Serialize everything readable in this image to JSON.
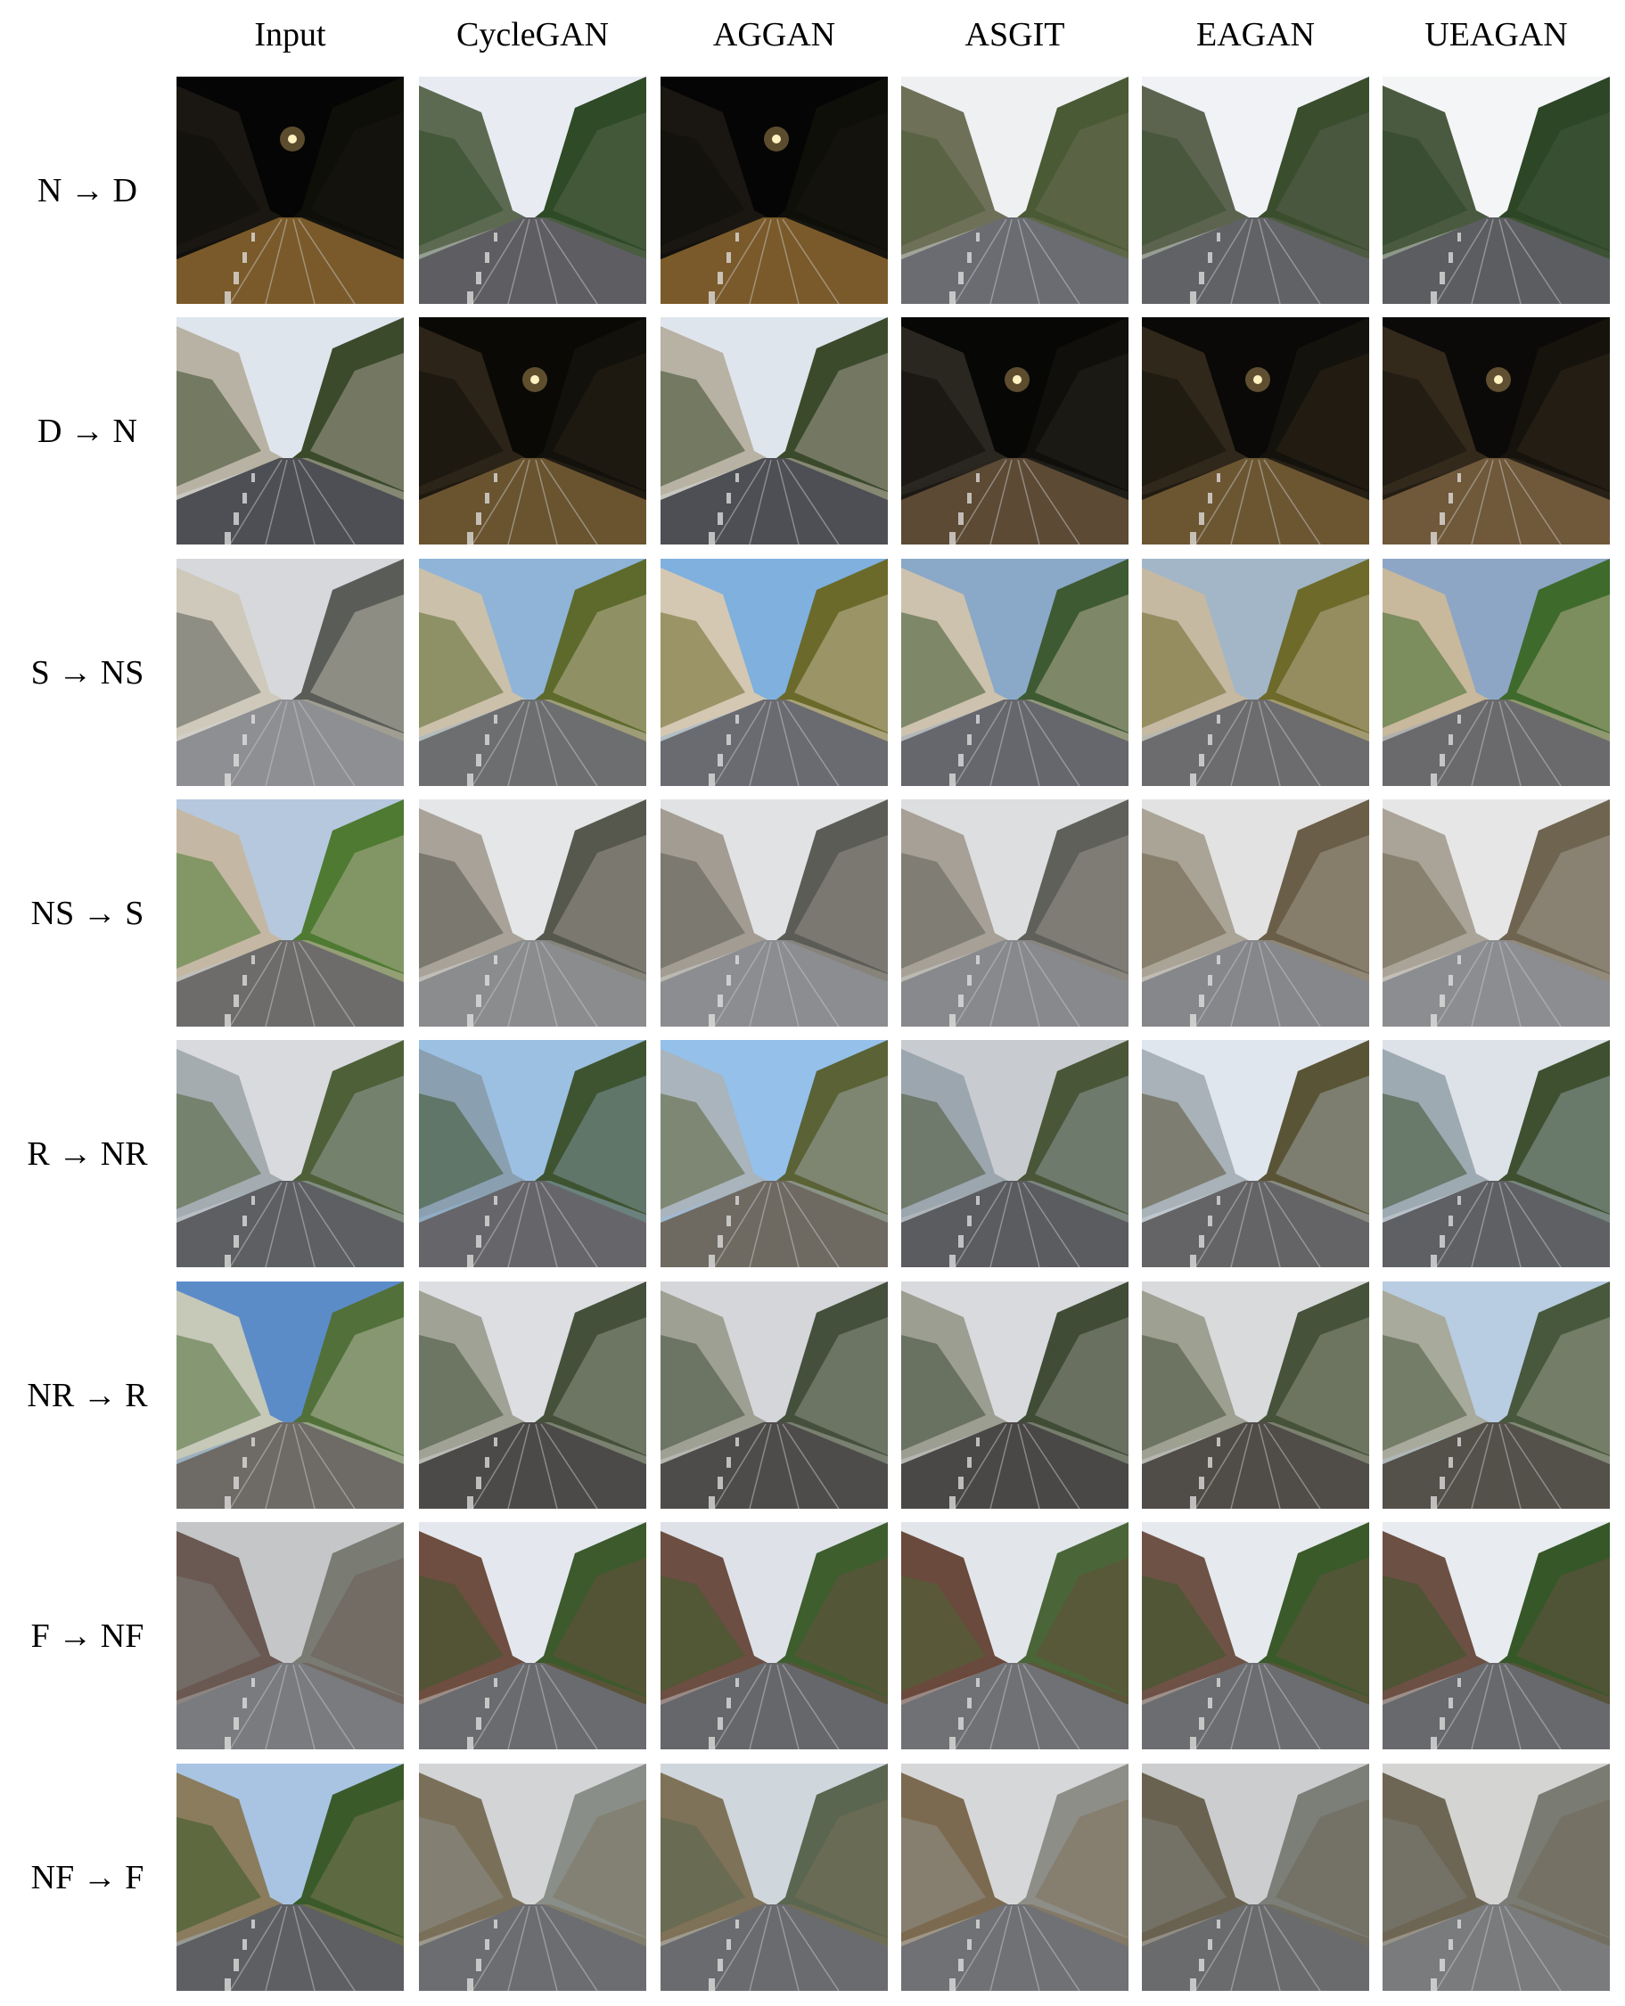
{
  "columns": [
    "Input",
    "CycleGAN",
    "AGGAN",
    "ASGIT",
    "EAGAN",
    "UEAGAN"
  ],
  "rows": [
    {
      "label": "N → D",
      "cells": [
        {
          "scene": "road",
          "sky": "#050505",
          "building": "#1a1712",
          "tree": "#0f0f0a",
          "road": "#7a5a2a",
          "light": true
        },
        {
          "scene": "road",
          "sky": "#e8ecf2",
          "building": "#5d6a52",
          "tree": "#2e4a26",
          "road": "#5e5e62",
          "light": false
        },
        {
          "scene": "road",
          "sky": "#050505",
          "building": "#1a1712",
          "tree": "#0f0f0a",
          "road": "#7a5a2a",
          "light": true
        },
        {
          "scene": "road",
          "sky": "#eef0f2",
          "building": "#6e7058",
          "tree": "#4a5a34",
          "road": "#6a6c72",
          "light": false
        },
        {
          "scene": "road",
          "sky": "#f0f2f5",
          "building": "#5c6450",
          "tree": "#3a4e2e",
          "road": "#616266",
          "light": false
        },
        {
          "scene": "road",
          "sky": "#f4f5f6",
          "building": "#4a5a40",
          "tree": "#2c4626",
          "road": "#5c5d60",
          "light": false
        }
      ]
    },
    {
      "label": "D → N",
      "cells": [
        {
          "scene": "road",
          "sky": "#dfe5ec",
          "building": "#b8b2a4",
          "tree": "#3c4a2c",
          "road": "#4d4f54",
          "light": false
        },
        {
          "scene": "road",
          "sky": "#0a0906",
          "building": "#2c2418",
          "tree": "#12110c",
          "road": "#6a5430",
          "light": true
        },
        {
          "scene": "road",
          "sky": "#dfe5ec",
          "building": "#b8b2a4",
          "tree": "#3c4a2c",
          "road": "#4d4f54",
          "light": false
        },
        {
          "scene": "road",
          "sky": "#070706",
          "building": "#2a2620",
          "tree": "#100f0c",
          "road": "#5c4a34",
          "light": true
        },
        {
          "scene": "road",
          "sky": "#0a0907",
          "building": "#30281a",
          "tree": "#14120c",
          "road": "#6c5632",
          "light": true
        },
        {
          "scene": "road",
          "sky": "#0c0a08",
          "building": "#342a1c",
          "tree": "#16130d",
          "road": "#70583a",
          "light": true
        }
      ]
    },
    {
      "label": "S → NS",
      "cells": [
        {
          "scene": "road",
          "sky": "#d6d8dc",
          "building": "#cfc9bb",
          "tree": "#5a5c58",
          "road": "#8e8f92",
          "light": false
        },
        {
          "scene": "road",
          "sky": "#8fb4d8",
          "building": "#cbc0aa",
          "tree": "#5d6a2c",
          "road": "#6d6e70",
          "light": false
        },
        {
          "scene": "road",
          "sky": "#7fb0de",
          "building": "#d4c8b2",
          "tree": "#6b6a2a",
          "road": "#6a6b70",
          "light": false
        },
        {
          "scene": "road",
          "sky": "#8aa8c8",
          "building": "#cdc2ae",
          "tree": "#3e5a32",
          "road": "#65676c",
          "light": false
        },
        {
          "scene": "road",
          "sky": "#a2b6c8",
          "building": "#c6b9a2",
          "tree": "#6e6a2a",
          "road": "#6c6c6e",
          "light": false
        },
        {
          "scene": "road",
          "sky": "#8ea6c6",
          "building": "#c8b89c",
          "tree": "#3e6a2c",
          "road": "#6a6a6c",
          "light": false
        }
      ]
    },
    {
      "label": "NS → S",
      "cells": [
        {
          "scene": "road",
          "sky": "#b6c8de",
          "building": "#c4b8a4",
          "tree": "#4e7a32",
          "road": "#6e6c6a",
          "light": false
        },
        {
          "scene": "road",
          "sky": "#e4e6e8",
          "building": "#a8a298",
          "tree": "#56584e",
          "road": "#8a8c8e",
          "light": false
        },
        {
          "scene": "road",
          "sky": "#e0e2e4",
          "building": "#a29c92",
          "tree": "#5c5c56",
          "road": "#8c8d90",
          "light": false
        },
        {
          "scene": "road",
          "sky": "#dcdee0",
          "building": "#a6a096",
          "tree": "#60605a",
          "road": "#88898c",
          "light": false
        },
        {
          "scene": "road",
          "sky": "#e2e2e2",
          "building": "#aaa496",
          "tree": "#6a5e48",
          "road": "#86878a",
          "light": false
        },
        {
          "scene": "road",
          "sky": "#e6e6e6",
          "building": "#aaa498",
          "tree": "#6e6450",
          "road": "#8c8d90",
          "light": false
        }
      ]
    },
    {
      "label": "R → NR",
      "cells": [
        {
          "scene": "road",
          "sky": "#d8dade",
          "building": "#a4acb0",
          "tree": "#4e6038",
          "road": "#5d5f62",
          "light": false
        },
        {
          "scene": "road",
          "sky": "#9cc0e2",
          "building": "#8aa0b0",
          "tree": "#3e5430",
          "road": "#66666a",
          "light": false
        },
        {
          "scene": "road",
          "sky": "#94c0ea",
          "building": "#aab4bc",
          "tree": "#5a6236",
          "road": "#6e6a62",
          "light": false
        },
        {
          "scene": "road",
          "sky": "#c8ccd0",
          "building": "#9ca6ae",
          "tree": "#4a5638",
          "road": "#5a5c60",
          "light": false
        },
        {
          "scene": "road",
          "sky": "#dfe6ee",
          "building": "#a8b2b8",
          "tree": "#5a5436",
          "road": "#646466",
          "light": false
        },
        {
          "scene": "road",
          "sky": "#dde2e8",
          "building": "#9eaab2",
          "tree": "#3e5030",
          "road": "#5e6064",
          "light": false
        }
      ]
    },
    {
      "label": "NR → R",
      "cells": [
        {
          "scene": "road",
          "sky": "#5c8cc8",
          "building": "#c6c8b8",
          "tree": "#52703a",
          "road": "#6e6a66",
          "light": false
        },
        {
          "scene": "road",
          "sky": "#dcdee2",
          "building": "#a0a296",
          "tree": "#44503a",
          "road": "#4c4a48",
          "light": false
        },
        {
          "scene": "road",
          "sky": "#d4d6da",
          "building": "#9ea094",
          "tree": "#44503c",
          "road": "#4e4c4a",
          "light": false
        },
        {
          "scene": "road",
          "sky": "#d8dadd",
          "building": "#9c9e92",
          "tree": "#404c36",
          "road": "#4a4846",
          "light": false
        },
        {
          "scene": "road",
          "sky": "#d8dadc",
          "building": "#9ea092",
          "tree": "#46523a",
          "road": "#504c48",
          "light": false
        },
        {
          "scene": "road",
          "sky": "#b8cce2",
          "building": "#a8aa9c",
          "tree": "#48583c",
          "road": "#54504a",
          "light": false
        }
      ]
    },
    {
      "label": "F → NF",
      "cells": [
        {
          "scene": "road",
          "sky": "#c4c6c8",
          "building": "#6a5852",
          "tree": "#7a7c74",
          "road": "#7a7b7e",
          "light": false
        },
        {
          "scene": "road",
          "sky": "#e4e8ee",
          "building": "#6e4e40",
          "tree": "#3c5a2c",
          "road": "#6a6b6e",
          "light": false
        },
        {
          "scene": "road",
          "sky": "#dee2e8",
          "building": "#6c4e42",
          "tree": "#3e5e2e",
          "road": "#66676a",
          "light": false
        },
        {
          "scene": "road",
          "sky": "#e2e6ea",
          "building": "#6a4a3c",
          "tree": "#4a6638",
          "road": "#707174",
          "light": false
        },
        {
          "scene": "road",
          "sky": "#e6eaee",
          "building": "#6e5246",
          "tree": "#3a5a2a",
          "road": "#6c6d70",
          "light": false
        },
        {
          "scene": "road",
          "sky": "#e8ebef",
          "building": "#6c5044",
          "tree": "#365828",
          "road": "#68696c",
          "light": false
        }
      ]
    },
    {
      "label": "NF → F",
      "cells": [
        {
          "scene": "road",
          "sky": "#a8c4e2",
          "building": "#8a7c5c",
          "tree": "#3a5a2a",
          "road": "#5e5f62",
          "light": false
        },
        {
          "scene": "road",
          "sky": "#d2d4d6",
          "building": "#7a705a",
          "tree": "#8a8e88",
          "road": "#6c6d70",
          "light": false
        },
        {
          "scene": "road",
          "sky": "#cfd6dc",
          "building": "#7e7258",
          "tree": "#5a6650",
          "road": "#6a6b6e",
          "light": false
        },
        {
          "scene": "road",
          "sky": "#d6d7d8",
          "building": "#7c6a50",
          "tree": "#8e8e88",
          "road": "#707174",
          "light": false
        },
        {
          "scene": "road",
          "sky": "#cccdce",
          "building": "#6a6250",
          "tree": "#7c7e78",
          "road": "#6a6b6d",
          "light": false
        },
        {
          "scene": "road",
          "sky": "#d4d4d2",
          "building": "#6e6654",
          "tree": "#7a7c74",
          "road": "#7a7b7c",
          "light": false
        }
      ]
    }
  ]
}
